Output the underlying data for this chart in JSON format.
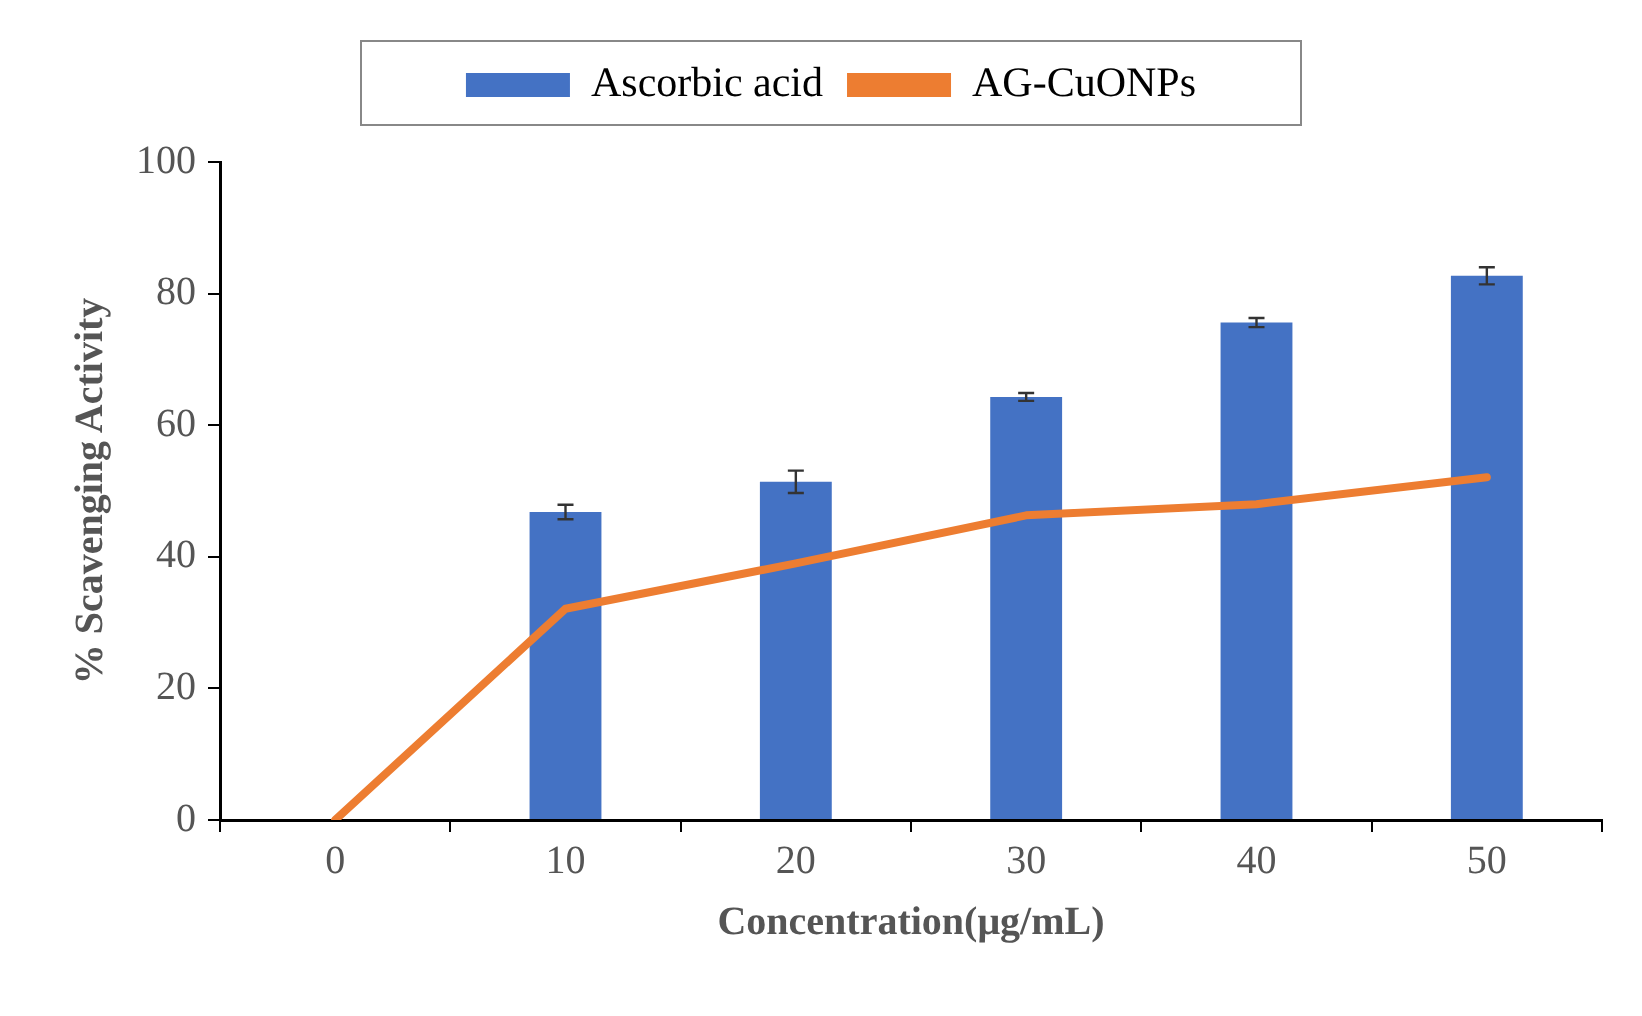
{
  "chart_data": {
    "type": "bar",
    "xlabel": "Concentration(μg/mL)",
    "ylabel": "% Scavenging Activity",
    "categories": [
      "0",
      "10",
      "20",
      "30",
      "40",
      "50"
    ],
    "series": [
      {
        "name": "Ascorbic acid",
        "type": "bar",
        "color": "#4472c4",
        "values": [
          null,
          46.8,
          51.4,
          64.3,
          75.6,
          82.7
        ],
        "errors": [
          null,
          1.1,
          1.7,
          0.6,
          0.7,
          1.3
        ]
      },
      {
        "name": "AG-CuONPs",
        "type": "line",
        "color": "#ed7d31",
        "values": [
          0,
          32.1,
          39.0,
          46.3,
          48.0,
          52.1
        ]
      }
    ],
    "ylim": [
      0,
      100
    ],
    "yticks": [
      0,
      20,
      40,
      60,
      80,
      100
    ],
    "grid": false,
    "legend": "top",
    "marker": "none"
  }
}
